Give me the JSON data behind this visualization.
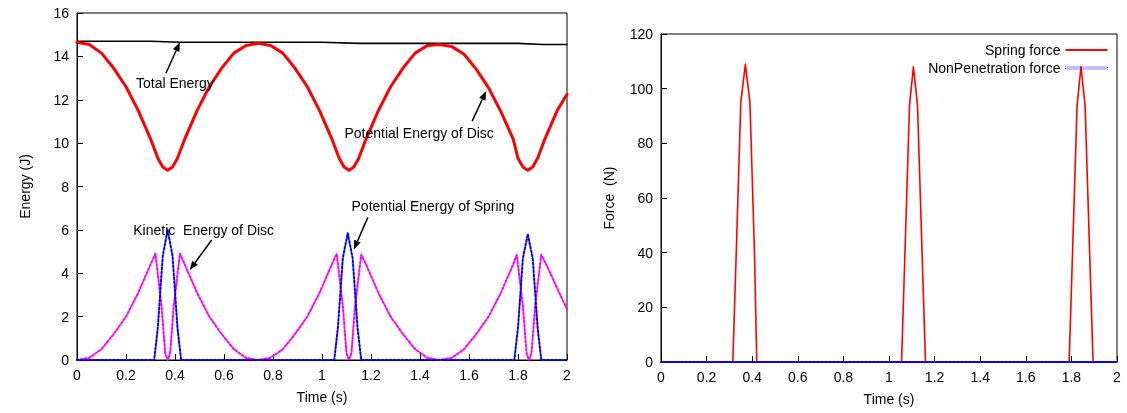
{
  "chart_data": [
    {
      "type": "line",
      "xlabel": "Time (s)",
      "ylabel": "Energy (J)",
      "xlim": [
        0,
        2
      ],
      "ylim": [
        0,
        16
      ],
      "xticks": [
        0,
        0.2,
        0.4,
        0.6,
        0.8,
        1,
        1.2,
        1.4,
        1.6,
        1.8,
        2
      ],
      "yticks": [
        0,
        2,
        4,
        6,
        8,
        10,
        12,
        14,
        16
      ],
      "grid": false,
      "legend": false,
      "series": [
        {
          "color": "#000000",
          "line_style": "solid",
          "x": [
            0,
            0.3,
            0.42,
            1.0,
            1.15,
            1.8,
            1.9,
            2
          ],
          "values": [
            14.7,
            14.7,
            14.65,
            14.65,
            14.6,
            14.6,
            14.55,
            14.55
          ]
        },
        {
          "color": "#ff0000",
          "line_style": "solid",
          "x": [
            0,
            0.05,
            0.1,
            0.15,
            0.2,
            0.25,
            0.3,
            0.33,
            0.35,
            0.37,
            0.39,
            0.41,
            0.44,
            0.49,
            0.54,
            0.59,
            0.64,
            0.69,
            0.74,
            0.79,
            0.84,
            0.89,
            0.94,
            0.99,
            1.04,
            1.07,
            1.09,
            1.11,
            1.13,
            1.15,
            1.18,
            1.23,
            1.28,
            1.33,
            1.38,
            1.43,
            1.48,
            1.53,
            1.58,
            1.63,
            1.68,
            1.73,
            1.78,
            1.8,
            1.82,
            1.84,
            1.86,
            1.88,
            1.91,
            1.96,
            2
          ],
          "values": [
            14.65,
            14.55,
            14.15,
            13.45,
            12.6,
            11.5,
            10.2,
            9.3,
            8.9,
            8.75,
            8.9,
            9.3,
            10.2,
            11.5,
            12.6,
            13.45,
            14.15,
            14.5,
            14.6,
            14.5,
            14.15,
            13.45,
            12.6,
            11.5,
            10.2,
            9.3,
            8.9,
            8.75,
            8.9,
            9.3,
            10.2,
            11.5,
            12.6,
            13.45,
            14.15,
            14.5,
            14.55,
            14.45,
            14.1,
            13.4,
            12.55,
            11.45,
            10.2,
            9.3,
            8.9,
            8.75,
            8.9,
            9.3,
            10.2,
            11.5,
            12.25
          ]
        },
        {
          "color": "#ff00ff",
          "line_style": "dotted",
          "x": [
            0,
            0.05,
            0.1,
            0.15,
            0.2,
            0.25,
            0.3,
            0.32,
            0.345,
            0.36,
            0.37,
            0.38,
            0.395,
            0.42,
            0.44,
            0.49,
            0.54,
            0.59,
            0.64,
            0.69,
            0.74,
            0.79,
            0.84,
            0.89,
            0.94,
            0.99,
            1.04,
            1.06,
            1.085,
            1.1,
            1.11,
            1.12,
            1.135,
            1.16,
            1.18,
            1.23,
            1.28,
            1.33,
            1.38,
            1.43,
            1.48,
            1.53,
            1.58,
            1.63,
            1.68,
            1.73,
            1.78,
            1.795,
            1.82,
            1.835,
            1.845,
            1.855,
            1.87,
            1.895,
            1.92,
            1.96,
            2
          ],
          "values": [
            0,
            0.1,
            0.5,
            1.2,
            2.0,
            3.1,
            4.4,
            4.9,
            2.5,
            0.3,
            0,
            0.3,
            2.5,
            4.9,
            4.4,
            3.1,
            2.0,
            1.2,
            0.5,
            0.1,
            0,
            0.1,
            0.5,
            1.2,
            2.0,
            3.1,
            4.4,
            4.9,
            2.5,
            0.3,
            0,
            0.3,
            2.5,
            4.85,
            4.4,
            3.1,
            2.0,
            1.2,
            0.5,
            0.1,
            0,
            0.1,
            0.5,
            1.2,
            2.0,
            3.1,
            4.4,
            4.85,
            2.5,
            0.3,
            0,
            0.3,
            2.5,
            4.85,
            4.3,
            3.3,
            2.35
          ]
        },
        {
          "color": "#0000ff",
          "line_style": "dotted",
          "x": [
            0,
            0.315,
            0.33,
            0.35,
            0.37,
            0.39,
            0.41,
            0.425,
            1.05,
            1.065,
            1.085,
            1.105,
            1.125,
            1.145,
            1.16,
            1.785,
            1.8,
            1.82,
            1.84,
            1.86,
            1.88,
            1.895,
            2
          ],
          "values": [
            0,
            0,
            1.5,
            4.8,
            6.0,
            4.8,
            1.5,
            0,
            0,
            1.5,
            4.7,
            5.85,
            4.7,
            1.5,
            0,
            0,
            1.5,
            4.7,
            5.8,
            4.7,
            1.5,
            0,
            0
          ]
        }
      ],
      "annotations": [
        {
          "text": "Total Energy",
          "x": 0.42,
          "y": 14.65
        },
        {
          "text": "Potential Energy of Disc",
          "x": 1.67,
          "y": 12.4
        },
        {
          "text": "Kinetic  Energy of Disc",
          "x": 0.46,
          "y": 4.15
        },
        {
          "text": "Potential Energy of Spring",
          "x": 1.13,
          "y": 5.1
        }
      ]
    },
    {
      "type": "line",
      "xlabel": "Time (s)",
      "ylabel": "Force  (N)",
      "xlim": [
        0,
        2
      ],
      "ylim": [
        0,
        120
      ],
      "xticks": [
        0,
        0.2,
        0.4,
        0.6,
        0.8,
        1,
        1.2,
        1.4,
        1.6,
        1.8,
        2
      ],
      "yticks": [
        0,
        20,
        40,
        60,
        80,
        100,
        120
      ],
      "grid": false,
      "legend": "top right",
      "series": [
        {
          "name": "Spring force",
          "color": "#ff0000",
          "line_style": "solid",
          "x": [
            0,
            0.315,
            0.33,
            0.35,
            0.37,
            0.39,
            0.41,
            0.42,
            1.055,
            1.07,
            1.09,
            1.107,
            1.125,
            1.145,
            1.16,
            1.79,
            1.805,
            1.825,
            1.842,
            1.86,
            1.88,
            1.895,
            2
          ],
          "values": [
            0,
            0,
            40,
            95,
            109,
            95,
            40,
            0,
            0,
            40,
            94,
            108,
            94,
            40,
            0,
            0,
            40,
            94,
            108,
            94,
            40,
            0,
            0
          ]
        },
        {
          "name": "NonPenetration force",
          "color": "#0000ff",
          "line_style": "dotted",
          "x": [
            0,
            2
          ],
          "values": [
            0,
            0
          ]
        }
      ]
    }
  ]
}
